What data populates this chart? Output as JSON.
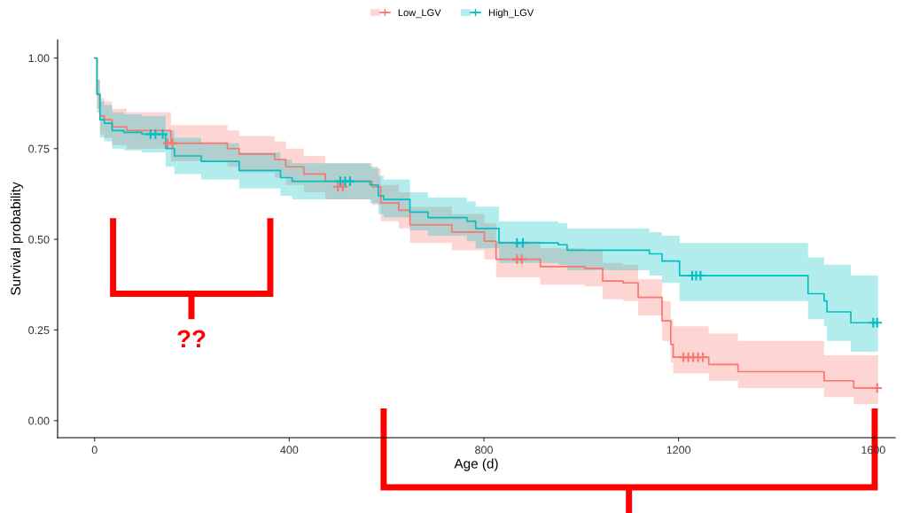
{
  "chart_data": {
    "type": "step",
    "xlabel": "Age (d)",
    "ylabel": "Survival probability",
    "legend": "top",
    "grid": false,
    "xlim": [
      -76,
      1645
    ],
    "ylim": [
      -0.047,
      1.05
    ],
    "xticks": [
      0,
      400,
      800,
      1200,
      1600
    ],
    "yticks": [
      {
        "value": 0,
        "label": "0.00"
      },
      {
        "value": 0.25,
        "label": "0.25"
      },
      {
        "value": 0.5,
        "label": "0.50"
      },
      {
        "value": 0.75,
        "label": "0.75"
      },
      {
        "value": 1,
        "label": "1.00"
      }
    ],
    "annotations": [
      "??"
    ],
    "series": [
      {
        "name": "Low_LGV",
        "color": "#f8766d",
        "x": [
          0,
          5,
          11,
          20,
          36,
          66,
          157,
          273,
          297,
          370,
          393,
          430,
          474,
          570,
          588,
          625,
          648,
          734,
          801,
          825,
          916,
          1007,
          1044,
          1086,
          1117,
          1166,
          1184,
          1189,
          1262,
          1322,
          1499,
          1560,
          1610
        ],
        "values": [
          1.0,
          0.9,
          0.84,
          0.83,
          0.81,
          0.8,
          0.765,
          0.75,
          0.735,
          0.72,
          0.7,
          0.68,
          0.66,
          0.645,
          0.6,
          0.58,
          0.54,
          0.52,
          0.495,
          0.445,
          0.425,
          0.42,
          0.385,
          0.38,
          0.34,
          0.275,
          0.21,
          0.175,
          0.155,
          0.135,
          0.11,
          0.09,
          0.09
        ],
        "upper": [
          1.0,
          0.94,
          0.89,
          0.88,
          0.86,
          0.85,
          0.815,
          0.8,
          0.785,
          0.77,
          0.75,
          0.73,
          0.71,
          0.695,
          0.65,
          0.63,
          0.59,
          0.57,
          0.545,
          0.495,
          0.475,
          0.47,
          0.435,
          0.43,
          0.39,
          0.33,
          0.28,
          0.26,
          0.24,
          0.22,
          0.18,
          0.18,
          0.18
        ],
        "lower": [
          1.0,
          0.86,
          0.79,
          0.78,
          0.76,
          0.75,
          0.715,
          0.7,
          0.685,
          0.67,
          0.65,
          0.63,
          0.61,
          0.595,
          0.55,
          0.53,
          0.49,
          0.47,
          0.445,
          0.395,
          0.375,
          0.37,
          0.335,
          0.33,
          0.29,
          0.22,
          0.16,
          0.13,
          0.11,
          0.09,
          0.065,
          0.045,
          0.045
        ]
      },
      {
        "name": "High_LGV",
        "color": "#00bfc4",
        "x": [
          0,
          5,
          11,
          20,
          36,
          60,
          97,
          146,
          164,
          219,
          297,
          382,
          406,
          566,
          583,
          594,
          648,
          685,
          765,
          783,
          831,
          953,
          971,
          1140,
          1166,
          1202,
          1466,
          1499,
          1505,
          1554,
          1610
        ],
        "values": [
          1.0,
          0.9,
          0.83,
          0.82,
          0.8,
          0.795,
          0.79,
          0.75,
          0.73,
          0.715,
          0.69,
          0.67,
          0.66,
          0.65,
          0.62,
          0.61,
          0.575,
          0.56,
          0.55,
          0.53,
          0.49,
          0.485,
          0.47,
          0.46,
          0.44,
          0.4,
          0.35,
          0.33,
          0.3,
          0.27,
          0.27
        ],
        "upper": [
          1.0,
          0.94,
          0.88,
          0.87,
          0.85,
          0.845,
          0.84,
          0.8,
          0.78,
          0.765,
          0.74,
          0.72,
          0.71,
          0.7,
          0.675,
          0.665,
          0.63,
          0.615,
          0.605,
          0.59,
          0.55,
          0.545,
          0.53,
          0.52,
          0.51,
          0.49,
          0.45,
          0.43,
          0.43,
          0.4,
          0.4
        ],
        "lower": [
          1.0,
          0.85,
          0.78,
          0.77,
          0.75,
          0.745,
          0.74,
          0.7,
          0.68,
          0.665,
          0.64,
          0.62,
          0.61,
          0.6,
          0.57,
          0.56,
          0.525,
          0.51,
          0.495,
          0.475,
          0.435,
          0.43,
          0.415,
          0.4,
          0.38,
          0.33,
          0.28,
          0.26,
          0.22,
          0.19,
          0.19
        ]
      },
      {
        "color": "#f8766d",
        "type": "scatter",
        "marker": "cross",
        "x": [
          150,
          160,
          500,
          510,
          868,
          878,
          1210,
          1220,
          1230,
          1240,
          1250,
          1608
        ],
        "values": [
          0.765,
          0.765,
          0.645,
          0.645,
          0.445,
          0.445,
          0.175,
          0.175,
          0.175,
          0.175,
          0.175,
          0.09
        ]
      },
      {
        "color": "#00bfc4",
        "type": "scatter",
        "marker": "cross",
        "x": [
          115,
          125,
          140,
          505,
          515,
          525,
          868,
          880,
          1228,
          1236,
          1245,
          1600,
          1608
        ],
        "values": [
          0.79,
          0.79,
          0.79,
          0.66,
          0.66,
          0.66,
          0.49,
          0.49,
          0.4,
          0.4,
          0.4,
          0.27,
          0.27
        ]
      }
    ]
  }
}
